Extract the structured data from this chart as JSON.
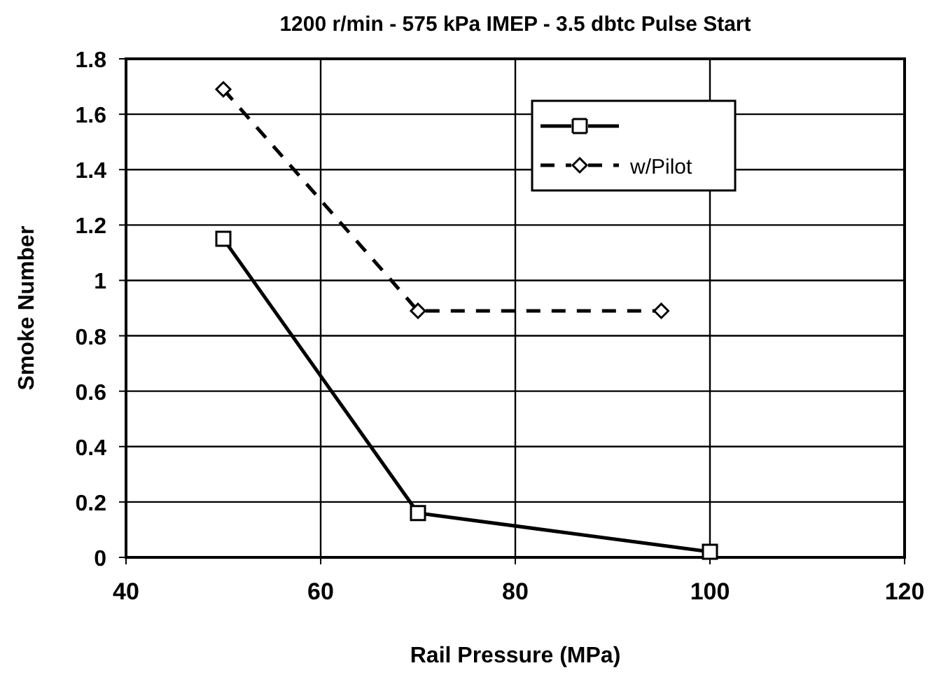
{
  "chart_data": {
    "type": "line",
    "title": "1200 r/min - 575 kPa IMEP - 3.5 dbtc Pulse Start",
    "xlabel": "Rail Pressure (MPa)",
    "ylabel": "Smoke Number",
    "xlim": [
      40,
      120
    ],
    "xticks": [
      40,
      60,
      80,
      100,
      120
    ],
    "ylim": [
      0,
      1.8
    ],
    "yticks": [
      0,
      0.2,
      0.4,
      0.6,
      0.8,
      1,
      1.2,
      1.4,
      1.6,
      1.8
    ],
    "grid": true,
    "legend": "top right",
    "series": [
      {
        "color": "#000000",
        "x": [
          50,
          70,
          100
        ],
        "values": [
          1.15,
          0.16,
          0.02
        ],
        "marker": "square",
        "line_style": "solid"
      },
      {
        "name": "w/Pilot",
        "color": "#000000",
        "x": [
          50,
          70,
          95
        ],
        "values": [
          1.69,
          0.89,
          0.89
        ],
        "marker": "diamond",
        "line_style": "dashed"
      }
    ]
  }
}
